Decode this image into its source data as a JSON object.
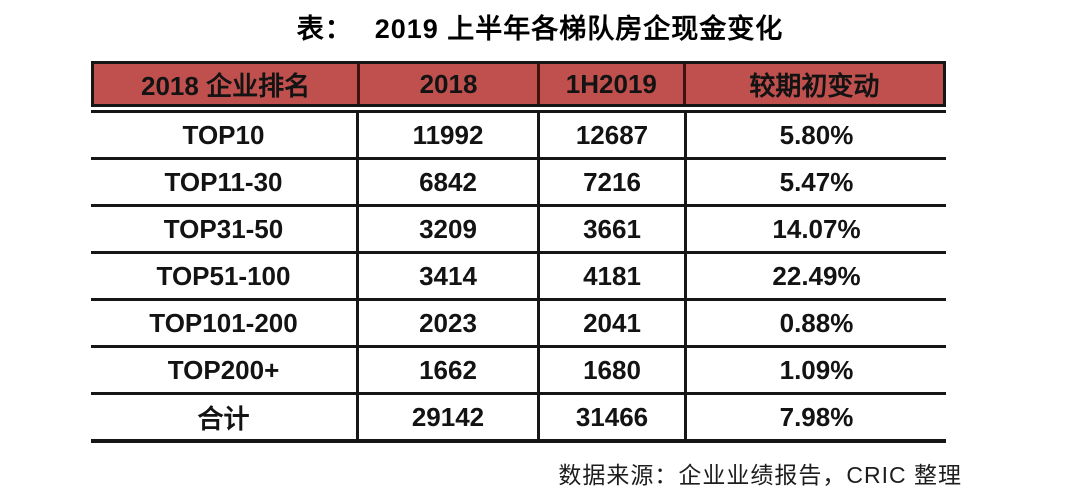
{
  "page": {
    "title_prefix": "表：",
    "title_text": "2019 上半年各梯队房企现金变化",
    "source_note": "数据来源：企业业绩报告，CRIC 整理"
  },
  "colors": {
    "header_bg": "#C0504D",
    "header_divider": "#401311",
    "table_border": "#161616",
    "text": "#131313"
  },
  "table": {
    "columns": [
      "2018 企业排名",
      "2018",
      "1H2019",
      "较期初变动"
    ],
    "rows": [
      [
        "TOP10",
        "11992",
        "12687",
        "5.80%"
      ],
      [
        "TOP11-30",
        "6842",
        "7216",
        "5.47%"
      ],
      [
        "TOP31-50",
        "3209",
        "3661",
        "14.07%"
      ],
      [
        "TOP51-100",
        "3414",
        "4181",
        "22.49%"
      ],
      [
        "TOP101-200",
        "2023",
        "2041",
        "0.88%"
      ],
      [
        "TOP200+",
        "1662",
        "1680",
        "1.09%"
      ],
      [
        "合计",
        "29142",
        "31466",
        "7.98%"
      ]
    ]
  },
  "chart_data": {
    "type": "table",
    "title": "2019 上半年各梯队房企现金变化",
    "columns": [
      "2018 企业排名",
      "2018",
      "1H2019",
      "较期初变动"
    ],
    "rows": [
      [
        "TOP10",
        11992,
        12687,
        "5.80%"
      ],
      [
        "TOP11-30",
        6842,
        7216,
        "5.47%"
      ],
      [
        "TOP31-50",
        3209,
        3661,
        "14.07%"
      ],
      [
        "TOP51-100",
        3414,
        4181,
        "22.49%"
      ],
      [
        "TOP101-200",
        2023,
        2041,
        "0.88%"
      ],
      [
        "TOP200+",
        1662,
        1680,
        "1.09%"
      ],
      [
        "合计",
        29142,
        31466,
        "7.98%"
      ]
    ],
    "source": "数据来源：企业业绩报告，CRIC 整理"
  }
}
